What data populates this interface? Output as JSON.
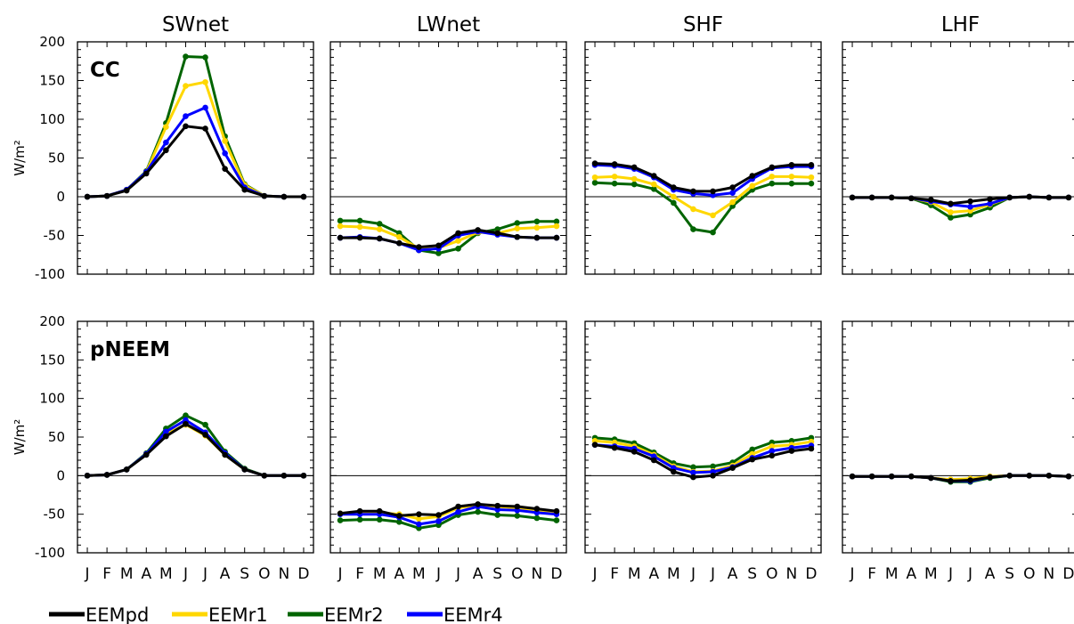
{
  "chart_data": {
    "type": "line",
    "panel_titles": [
      "SWnet",
      "LWnet",
      "SHF",
      "LHF"
    ],
    "row_labels": [
      "CC",
      "pNEEM"
    ],
    "ylabel": "W/m²",
    "ylim": [
      -100,
      200
    ],
    "yticks": [
      "200",
      "150",
      "100",
      "50",
      "0",
      "-50",
      "-100"
    ],
    "months": [
      "J",
      "F",
      "M",
      "A",
      "M",
      "J",
      "J",
      "A",
      "S",
      "O",
      "N",
      "D"
    ],
    "legend": [
      {
        "name": "EEMpd",
        "color": "#000000"
      },
      {
        "name": "EEMr1",
        "color": "#ffd700"
      },
      {
        "name": "EEMr2",
        "color": "#006400"
      },
      {
        "name": "EEMr4",
        "color": "#0000ff"
      }
    ],
    "panels": [
      {
        "row": "CC",
        "variable": "SWnet",
        "series": [
          {
            "name": "EEMpd",
            "values": [
              0,
              1,
              8,
              30,
              60,
              91,
              88,
              36,
              9,
              1,
              0,
              0
            ]
          },
          {
            "name": "EEMr1",
            "values": [
              0,
              1,
              9,
              32,
              90,
              143,
              148,
              72,
              15,
              1,
              0,
              0
            ]
          },
          {
            "name": "EEMr2",
            "values": [
              0,
              1,
              9,
              33,
              95,
              181,
              180,
              78,
              16,
              1,
              0,
              0
            ]
          },
          {
            "name": "EEMr4",
            "values": [
              0,
              1,
              9,
              32,
              70,
              104,
              115,
              56,
              12,
              1,
              0,
              0
            ]
          }
        ]
      },
      {
        "row": "CC",
        "variable": "LWnet",
        "series": [
          {
            "name": "EEMpd",
            "values": [
              -53,
              -53,
              -54,
              -60,
              -65,
              -63,
              -47,
              -43,
              -47,
              -52,
              -53,
              -53
            ]
          },
          {
            "name": "EEMr1",
            "values": [
              -38,
              -39,
              -42,
              -52,
              -67,
              -66,
              -57,
              -46,
              -47,
              -41,
              -40,
              -38
            ]
          },
          {
            "name": "EEMr2",
            "values": [
              -31,
              -31,
              -35,
              -47,
              -69,
              -73,
              -67,
              -47,
              -42,
              -34,
              -32,
              -32
            ]
          },
          {
            "name": "EEMr4",
            "values": [
              -53,
              -52,
              -54,
              -60,
              -69,
              -67,
              -50,
              -45,
              -49,
              -52,
              -53,
              -53
            ]
          }
        ]
      },
      {
        "row": "CC",
        "variable": "SHF",
        "series": [
          {
            "name": "EEMpd",
            "values": [
              43,
              42,
              38,
              27,
              12,
              7,
              7,
              12,
              27,
              38,
              41,
              41
            ]
          },
          {
            "name": "EEMr1",
            "values": [
              25,
              26,
              23,
              16,
              0,
              -16,
              -24,
              -7,
              14,
              26,
              26,
              25
            ]
          },
          {
            "name": "EEMr2",
            "values": [
              18,
              17,
              16,
              10,
              -8,
              -42,
              -46,
              -12,
              9,
              17,
              17,
              17
            ]
          },
          {
            "name": "EEMr4",
            "values": [
              41,
              40,
              36,
              25,
              9,
              4,
              2,
              5,
              23,
              37,
              39,
              39
            ]
          }
        ]
      },
      {
        "row": "CC",
        "variable": "LHF",
        "series": [
          {
            "name": "EEMpd",
            "values": [
              -1,
              -1,
              -1,
              -2,
              -4,
              -9,
              -6,
              -3,
              -1,
              0,
              -1,
              -1
            ]
          },
          {
            "name": "EEMr1",
            "values": [
              -1,
              -1,
              -1,
              -2,
              -7,
              -20,
              -18,
              -10,
              -1,
              0,
              -1,
              -1
            ]
          },
          {
            "name": "EEMr2",
            "values": [
              -1,
              -1,
              -1,
              -2,
              -11,
              -27,
              -23,
              -14,
              -1,
              0,
              -1,
              -1
            ]
          },
          {
            "name": "EEMr4",
            "values": [
              -1,
              -1,
              -1,
              -2,
              -6,
              -10,
              -13,
              -9,
              -1,
              0,
              -1,
              -1
            ]
          }
        ]
      },
      {
        "row": "pNEEM",
        "variable": "SWnet",
        "series": [
          {
            "name": "EEMpd",
            "values": [
              0,
              1,
              8,
              27,
              51,
              67,
              53,
              27,
              8,
              0,
              0,
              0
            ]
          },
          {
            "name": "EEMr1",
            "values": [
              0,
              1,
              8,
              28,
              54,
              66,
              52,
              27,
              8,
              0,
              0,
              0
            ]
          },
          {
            "name": "EEMr2",
            "values": [
              0,
              1,
              8,
              29,
              61,
              78,
              66,
              31,
              9,
              0,
              0,
              0
            ]
          },
          {
            "name": "EEMr4",
            "values": [
              0,
              1,
              8,
              28,
              57,
              72,
              56,
              29,
              8,
              0,
              0,
              0
            ]
          }
        ]
      },
      {
        "row": "pNEEM",
        "variable": "LWnet",
        "series": [
          {
            "name": "EEMpd",
            "values": [
              -49,
              -46,
              -46,
              -52,
              -50,
              -51,
              -40,
              -37,
              -39,
              -40,
              -43,
              -46
            ]
          },
          {
            "name": "EEMr1",
            "values": [
              -49,
              -48,
              -48,
              -50,
              -56,
              -53,
              -42,
              -38,
              -40,
              -42,
              -45,
              -47
            ]
          },
          {
            "name": "EEMr2",
            "values": [
              -58,
              -57,
              -57,
              -60,
              -68,
              -64,
              -51,
              -47,
              -51,
              -52,
              -55,
              -58
            ]
          },
          {
            "name": "EEMr4",
            "values": [
              -50,
              -50,
              -50,
              -54,
              -63,
              -59,
              -47,
              -40,
              -44,
              -45,
              -48,
              -50
            ]
          }
        ]
      },
      {
        "row": "pNEEM",
        "variable": "SHF",
        "series": [
          {
            "name": "EEMpd",
            "values": [
              40,
              36,
              31,
              20,
              5,
              -2,
              0,
              10,
              21,
              26,
              32,
              35
            ]
          },
          {
            "name": "EEMr1",
            "values": [
              45,
              43,
              38,
              27,
              12,
              5,
              6,
              13,
              28,
              38,
              40,
              44
            ]
          },
          {
            "name": "EEMr2",
            "values": [
              49,
              47,
              42,
              30,
              16,
              11,
              12,
              17,
              34,
              43,
              45,
              49
            ]
          },
          {
            "name": "EEMr4",
            "values": [
              40,
              38,
              35,
              25,
              10,
              4,
              5,
              11,
              23,
              32,
              36,
              39
            ]
          }
        ]
      },
      {
        "row": "pNEEM",
        "variable": "LHF",
        "series": [
          {
            "name": "EEMpd",
            "values": [
              -1,
              -1,
              -1,
              -1,
              -3,
              -7,
              -6,
              -2,
              0,
              0,
              0,
              -1
            ]
          },
          {
            "name": "EEMr1",
            "values": [
              -1,
              -1,
              -1,
              -1,
              -3,
              -5,
              -4,
              -1,
              0,
              0,
              0,
              -1
            ]
          },
          {
            "name": "EEMr2",
            "values": [
              -1,
              -1,
              -1,
              -1,
              -3,
              -8,
              -8,
              -3,
              0,
              0,
              0,
              -1
            ]
          },
          {
            "name": "EEMr4",
            "values": [
              -1,
              -1,
              -1,
              -1,
              -3,
              -7,
              -7,
              -2,
              0,
              0,
              0,
              -1
            ]
          }
        ]
      }
    ]
  }
}
